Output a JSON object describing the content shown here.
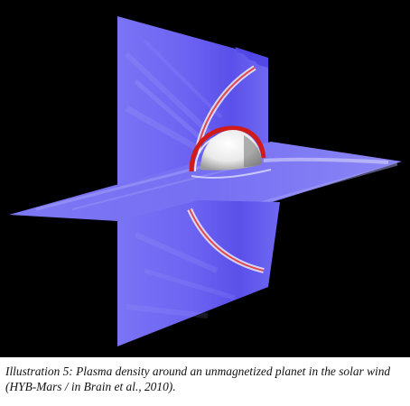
{
  "figure": {
    "caption": "Illustration 5: Plasma density around an unmagnetized planet in the solar wind (HYB-Mars / in Brain et al., 2010).",
    "colors": {
      "background": "#000000",
      "plasma_base": "#6a5ff0",
      "plasma_high_density": "#d11a1a",
      "planet": "#f2f2f2"
    }
  }
}
